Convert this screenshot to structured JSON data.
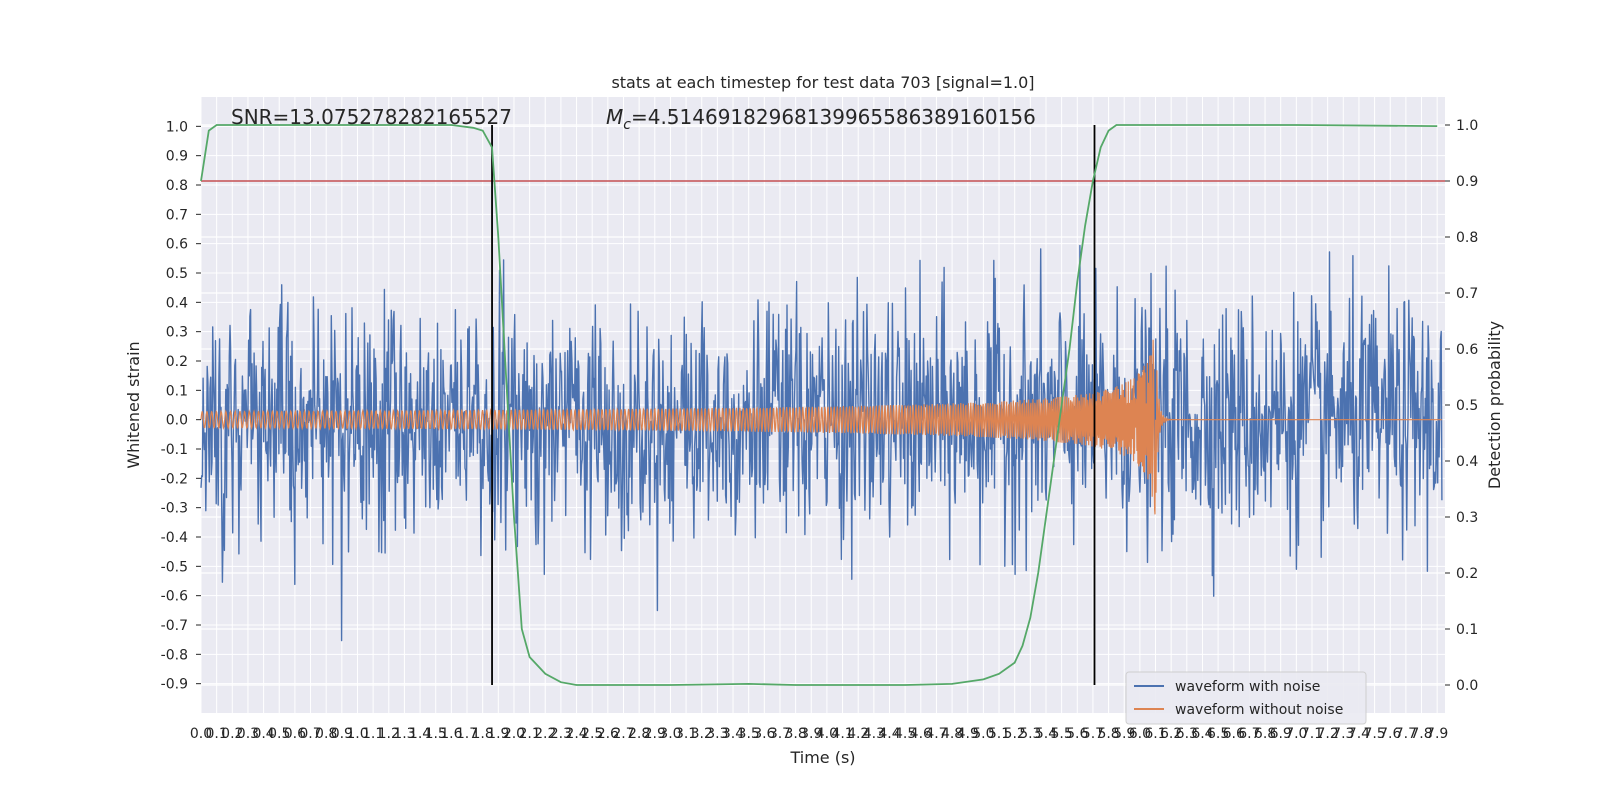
{
  "chart_data": {
    "type": "line",
    "title": "stats at each timestep for test data 703 [signal=1.0]",
    "xlabel": "Time (s)",
    "ylabel": "Whitened strain",
    "y2label": "Detection probability",
    "xlim": [
      0.0,
      7.95
    ],
    "ylim": [
      -1.0,
      1.1
    ],
    "y2lim": [
      -0.05,
      1.05
    ],
    "grid": true,
    "x_ticks": [
      "0.0",
      "0.1",
      "0.2",
      "0.3",
      "0.4",
      "0.5",
      "0.6",
      "0.7",
      "0.8",
      "0.9",
      "1.0",
      "1.1",
      "1.2",
      "1.3",
      "1.4",
      "1.5",
      "1.6",
      "1.7",
      "1.8",
      "1.9",
      "2.0",
      "2.1",
      "2.2",
      "2.3",
      "2.4",
      "2.5",
      "2.6",
      "2.7",
      "2.8",
      "2.9",
      "3.0",
      "3.1",
      "3.2",
      "3.3",
      "3.4",
      "3.5",
      "3.6",
      "3.7",
      "3.8",
      "3.9",
      "4.0",
      "4.1",
      "4.2",
      "4.3",
      "4.4",
      "4.5",
      "4.6",
      "4.7",
      "4.8",
      "4.9",
      "5.0",
      "5.1",
      "5.2",
      "5.3",
      "5.4",
      "5.5",
      "5.6",
      "5.7",
      "5.8",
      "5.9",
      "6.0",
      "6.1",
      "6.2",
      "6.3",
      "6.4",
      "6.5",
      "6.6",
      "6.7",
      "6.8",
      "6.9",
      "7.0",
      "7.1",
      "7.2",
      "7.3",
      "7.4",
      "7.5",
      "7.6",
      "7.7",
      "7.8",
      "7.9"
    ],
    "y_ticks": [
      "1.0",
      "0.9",
      "0.8",
      "0.7",
      "0.6",
      "0.5",
      "0.4",
      "0.3",
      "0.2",
      "0.1",
      "0.0",
      "-0.1",
      "-0.2",
      "-0.3",
      "-0.4",
      "-0.5",
      "-0.6",
      "-0.7",
      "-0.8",
      "-0.9"
    ],
    "y2_ticks": [
      "1.0",
      "0.9",
      "0.8",
      "0.7",
      "0.6",
      "0.5",
      "0.4",
      "0.3",
      "0.2",
      "0.1",
      "0.0"
    ],
    "annotations": {
      "snr": "SNR=13.075278282165527",
      "mc": "=4.51469182968139965586389160156",
      "mc_symbol": "M",
      "mc_sub": "c"
    },
    "threshold": {
      "y2": 0.9,
      "color": "#c44e52"
    },
    "vlines": [
      1.86,
      5.71
    ],
    "series": [
      {
        "name": "waveform with noise",
        "color": "#4c72b0"
      },
      {
        "name": "waveform without noise",
        "color": "#dd8452"
      },
      {
        "color": "#55a868",
        "x": [
          0.0,
          0.05,
          0.1,
          0.2,
          0.4,
          0.8,
          1.2,
          1.6,
          1.74,
          1.8,
          1.86,
          1.9,
          1.95,
          2.0,
          2.05,
          2.1,
          2.2,
          2.3,
          2.4,
          2.6,
          3.0,
          3.5,
          3.8,
          4.0,
          4.5,
          4.8,
          5.0,
          5.1,
          5.2,
          5.25,
          5.3,
          5.35,
          5.4,
          5.45,
          5.5,
          5.55,
          5.6,
          5.65,
          5.7,
          5.75,
          5.8,
          5.85,
          5.9,
          6.0,
          6.5,
          7.0,
          7.9
        ],
        "values": [
          0.9,
          0.99,
          1.0,
          1.0,
          1.0,
          1.0,
          1.0,
          1.0,
          0.995,
          0.99,
          0.96,
          0.8,
          0.55,
          0.3,
          0.1,
          0.05,
          0.02,
          0.005,
          0.0,
          0.0,
          0.0,
          0.002,
          0.0,
          0.0,
          0.0,
          0.002,
          0.01,
          0.02,
          0.04,
          0.07,
          0.12,
          0.2,
          0.3,
          0.4,
          0.5,
          0.6,
          0.72,
          0.82,
          0.9,
          0.96,
          0.99,
          1.0,
          1.0,
          1.0,
          1.0,
          1.0,
          0.998
        ]
      }
    ]
  }
}
